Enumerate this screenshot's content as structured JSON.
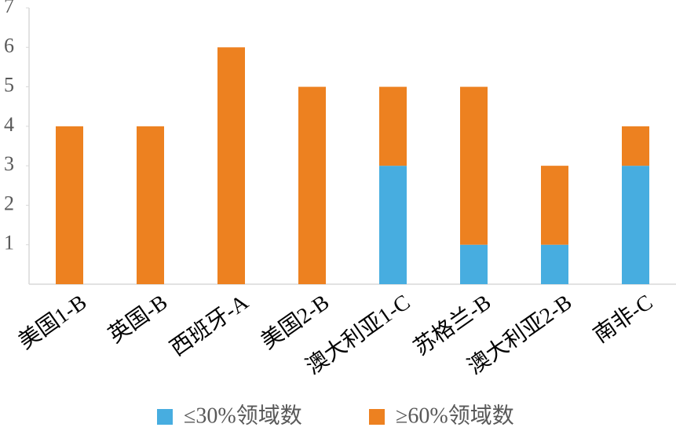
{
  "chart_data": {
    "type": "stacked-bar",
    "categories": [
      "美国1-B",
      "英国-B",
      "西班牙-A",
      "美国2-B",
      "澳大利亚1-C",
      "苏格兰-B",
      "澳大利亚2-B",
      "南非-C"
    ],
    "series": [
      {
        "name": "≤30%领域数",
        "color": "#47ade0",
        "values": [
          0,
          0,
          0,
          0,
          3,
          1,
          1,
          3
        ]
      },
      {
        "name": "≥60%领域数",
        "color": "#ed8120",
        "values": [
          4,
          4,
          6,
          5,
          2,
          4,
          2,
          1
        ]
      }
    ],
    "ylim": [
      0,
      7
    ],
    "yticks": [
      1,
      2,
      3,
      4,
      5,
      6,
      7
    ],
    "grid": false
  }
}
